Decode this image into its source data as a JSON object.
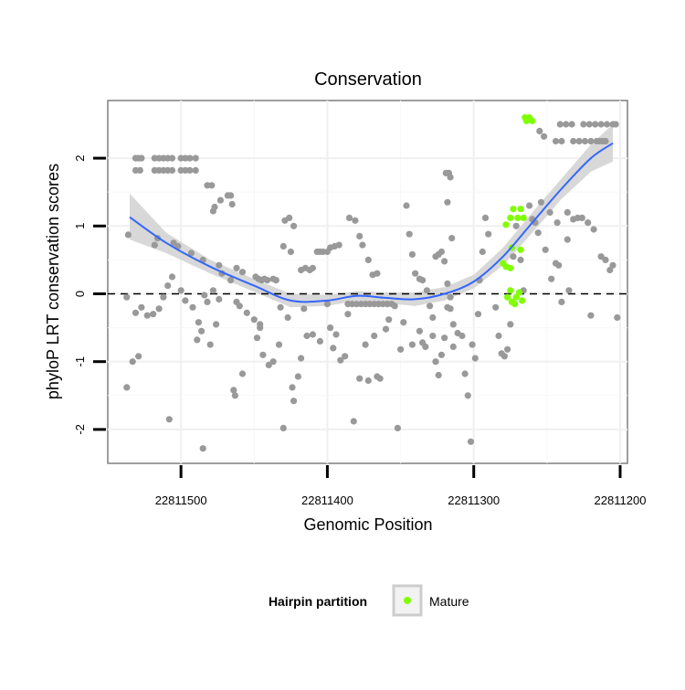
{
  "chart_data": {
    "type": "scatter",
    "title": "Conservation",
    "xlabel": "Genomic Position",
    "ylabel": "phyloP LRT conservation scores",
    "x_reversed": true,
    "xlim": [
      22811550,
      22811195
    ],
    "ylim": [
      -2.5,
      2.85
    ],
    "x_ticks": [
      22811500,
      22811400,
      22811300,
      22811200
    ],
    "y_ticks": [
      -2,
      -1,
      0,
      1,
      2
    ],
    "reference_line_y": 0,
    "grid": true,
    "legend_position": "bottom",
    "legend_title": "Hairpin partition",
    "legend_entries": [
      "Mature"
    ],
    "colors": {
      "other": "#999999",
      "mature": "#7fff00",
      "smooth": "#3366ff",
      "band": "#d4d4d4"
    },
    "series": [
      {
        "name": "",
        "color": "#999999",
        "points": [
          [
            22811531,
            2.0
          ],
          [
            22811529,
            2.0
          ],
          [
            22811527,
            2.0
          ],
          [
            22811518,
            2.0
          ],
          [
            22811515,
            2.0
          ],
          [
            22811512,
            2.0
          ],
          [
            22811509,
            2.0
          ],
          [
            22811506,
            2.0
          ],
          [
            22811500,
            2.0
          ],
          [
            22811497,
            2.0
          ],
          [
            22811494,
            2.0
          ],
          [
            22811490,
            2.0
          ],
          [
            22811531,
            1.82
          ],
          [
            22811528,
            1.82
          ],
          [
            22811518,
            1.82
          ],
          [
            22811515,
            1.82
          ],
          [
            22811512,
            1.82
          ],
          [
            22811509,
            1.82
          ],
          [
            22811506,
            1.82
          ],
          [
            22811500,
            1.82
          ],
          [
            22811497,
            1.82
          ],
          [
            22811494,
            1.82
          ],
          [
            22811490,
            1.82
          ],
          [
            22811482,
            1.6
          ],
          [
            22811479,
            1.6
          ],
          [
            22811468,
            1.45
          ],
          [
            22811466,
            1.45
          ],
          [
            22811465,
            1.32
          ],
          [
            22811473,
            1.38
          ],
          [
            22811477,
            1.28
          ],
          [
            22811478,
            1.22
          ],
          [
            22811536,
            0.87
          ],
          [
            22811516,
            0.82
          ],
          [
            22811505,
            0.75
          ],
          [
            22811502,
            0.7
          ],
          [
            22811518,
            0.72
          ],
          [
            22811493,
            0.6
          ],
          [
            22811485,
            0.5
          ],
          [
            22811474,
            0.42
          ],
          [
            22811472,
            0.3
          ],
          [
            22811462,
            0.38
          ],
          [
            22811458,
            0.32
          ],
          [
            22811478,
            0.05
          ],
          [
            22811474,
            -0.08
          ],
          [
            22811466,
            0.2
          ],
          [
            22811462,
            -0.12
          ],
          [
            22811460,
            -0.18
          ],
          [
            22811455,
            -0.28
          ],
          [
            22811450,
            -0.38
          ],
          [
            22811446,
            -0.45
          ],
          [
            22811537,
            -0.05
          ],
          [
            22811531,
            -0.28
          ],
          [
            22811527,
            -0.2
          ],
          [
            22811523,
            -0.32
          ],
          [
            22811519,
            -0.3
          ],
          [
            22811515,
            -0.22
          ],
          [
            22811512,
            -0.05
          ],
          [
            22811509,
            0.12
          ],
          [
            22811506,
            0.25
          ],
          [
            22811500,
            0.05
          ],
          [
            22811497,
            -0.1
          ],
          [
            22811492,
            -0.2
          ],
          [
            22811488,
            -0.42
          ],
          [
            22811486,
            -0.55
          ],
          [
            22811484,
            -0.02
          ],
          [
            22811482,
            -0.12
          ],
          [
            22811533,
            -1.0
          ],
          [
            22811529,
            -0.92
          ],
          [
            22811537,
            -1.38
          ],
          [
            22811508,
            -1.85
          ],
          [
            22811480,
            -0.75
          ],
          [
            22811476,
            -0.45
          ],
          [
            22811489,
            -0.68
          ],
          [
            22811464,
            -1.42
          ],
          [
            22811463,
            -1.5
          ],
          [
            22811458,
            -1.18
          ],
          [
            22811485,
            -2.28
          ],
          [
            22811449,
            0.25
          ],
          [
            22811447,
            0.22
          ],
          [
            22811445,
            0.2
          ],
          [
            22811443,
            0.22
          ],
          [
            22811441,
            0.2
          ],
          [
            22811437,
            0.22
          ],
          [
            22811435,
            0.2
          ],
          [
            22811446,
            -0.5
          ],
          [
            22811448,
            -0.65
          ],
          [
            22811444,
            -0.9
          ],
          [
            22811440,
            -1.05
          ],
          [
            22811437,
            -1.0
          ],
          [
            22811429,
            1.08
          ],
          [
            22811426,
            1.12
          ],
          [
            22811423,
            1.0
          ],
          [
            22811425,
            0.62
          ],
          [
            22811430,
            0.7
          ],
          [
            22811432,
            -0.2
          ],
          [
            22811427,
            -0.35
          ],
          [
            22811433,
            -0.75
          ],
          [
            22811430,
            -1.98
          ],
          [
            22811423,
            -1.58
          ],
          [
            22811424,
            -1.38
          ],
          [
            22811420,
            -1.22
          ],
          [
            22811418,
            -0.95
          ],
          [
            22811416,
            -0.22
          ],
          [
            22811414,
            -0.62
          ],
          [
            22811418,
            0.35
          ],
          [
            22811415,
            0.38
          ],
          [
            22811412,
            0.35
          ],
          [
            22811410,
            0.38
          ],
          [
            22811407,
            0.62
          ],
          [
            22811405,
            0.62
          ],
          [
            22811403,
            0.62
          ],
          [
            22811400,
            0.62
          ],
          [
            22811398,
            0.68
          ],
          [
            22811395,
            0.7
          ],
          [
            22811392,
            0.72
          ],
          [
            22811410,
            -0.6
          ],
          [
            22811405,
            -0.7
          ],
          [
            22811400,
            -0.15
          ],
          [
            22811398,
            -0.5
          ],
          [
            22811396,
            -0.8
          ],
          [
            22811394,
            -0.6
          ],
          [
            22811391,
            -0.98
          ],
          [
            22811388,
            -0.92
          ],
          [
            22811386,
            -0.3
          ],
          [
            22811385,
            1.12
          ],
          [
            22811381,
            1.08
          ],
          [
            22811378,
            0.85
          ],
          [
            22811376,
            0.72
          ],
          [
            22811372,
            0.5
          ],
          [
            22811369,
            0.28
          ],
          [
            22811366,
            0.3
          ],
          [
            22811386,
            -0.15
          ],
          [
            22811383,
            -0.15
          ],
          [
            22811380,
            -0.15
          ],
          [
            22811377,
            -0.15
          ],
          [
            22811374,
            -0.15
          ],
          [
            22811371,
            -0.15
          ],
          [
            22811368,
            -0.15
          ],
          [
            22811365,
            -0.15
          ],
          [
            22811362,
            -0.15
          ],
          [
            22811359,
            -0.15
          ],
          [
            22811356,
            -0.15
          ],
          [
            22811382,
            -1.88
          ],
          [
            22811378,
            -1.25
          ],
          [
            22811374,
            -0.75
          ],
          [
            22811372,
            -1.28
          ],
          [
            22811368,
            -0.62
          ],
          [
            22811366,
            -1.22
          ],
          [
            22811364,
            -1.25
          ],
          [
            22811360,
            -0.52
          ],
          [
            22811358,
            -0.38
          ],
          [
            22811354,
            -0.18
          ],
          [
            22811352,
            -1.98
          ],
          [
            22811350,
            -0.82
          ],
          [
            22811348,
            -0.42
          ],
          [
            22811346,
            1.3
          ],
          [
            22811344,
            0.88
          ],
          [
            22811342,
            0.58
          ],
          [
            22811340,
            0.3
          ],
          [
            22811337,
            0.22
          ],
          [
            22811335,
            0.2
          ],
          [
            22811332,
            0.05
          ],
          [
            22811330,
            -0.18
          ],
          [
            22811328,
            -0.35
          ],
          [
            22811326,
            0.55
          ],
          [
            22811324,
            0.58
          ],
          [
            22811322,
            0.62
          ],
          [
            22811320,
            0.48
          ],
          [
            22811318,
            0.15
          ],
          [
            22811316,
            -0.22
          ],
          [
            22811314,
            -0.45
          ],
          [
            22811337,
            -0.55
          ],
          [
            22811335,
            -0.72
          ],
          [
            22811333,
            -0.78
          ],
          [
            22811328,
            -0.62
          ],
          [
            22811326,
            -1.0
          ],
          [
            22811324,
            -1.2
          ],
          [
            22811322,
            -0.9
          ],
          [
            22811320,
            -0.65
          ],
          [
            22811318,
            -0.2
          ],
          [
            22811316,
            -0.05
          ],
          [
            22811314,
            -0.78
          ],
          [
            22811342,
            -0.75
          ],
          [
            22811319,
            1.78
          ],
          [
            22811317,
            1.78
          ],
          [
            22811316,
            1.72
          ],
          [
            22811318,
            1.35
          ],
          [
            22811315,
            0.82
          ],
          [
            22811311,
            -0.58
          ],
          [
            22811308,
            -0.62
          ],
          [
            22811306,
            -1.18
          ],
          [
            22811304,
            -1.5
          ],
          [
            22811302,
            -2.18
          ],
          [
            22811301,
            -0.75
          ],
          [
            22811299,
            -0.95
          ],
          [
            22811297,
            -0.3
          ],
          [
            22811296,
            0.2
          ],
          [
            22811294,
            0.62
          ],
          [
            22811292,
            1.12
          ],
          [
            22811290,
            0.88
          ],
          [
            22811285,
            -0.2
          ],
          [
            22811283,
            -0.62
          ],
          [
            22811281,
            -0.88
          ],
          [
            22811279,
            -0.92
          ],
          [
            22811277,
            -0.82
          ],
          [
            22811275,
            -0.45
          ],
          [
            22811273,
            0.55
          ],
          [
            22811271,
            1.0
          ],
          [
            22811268,
            0.5
          ],
          [
            22811266,
            0.05
          ],
          [
            22811262,
            1.3
          ],
          [
            22811260,
            1.1
          ],
          [
            22811258,
            1.05
          ],
          [
            22811256,
            0.9
          ],
          [
            22811254,
            1.35
          ],
          [
            22811251,
            0.65
          ],
          [
            22811247,
            0.22
          ],
          [
            22811244,
            0.45
          ],
          [
            22811241,
            2.5
          ],
          [
            22811237,
            2.5
          ],
          [
            22811233,
            2.5
          ],
          [
            22811225,
            2.5
          ],
          [
            22811221,
            2.5
          ],
          [
            22811217,
            2.5
          ],
          [
            22811213,
            2.5
          ],
          [
            22811209,
            2.5
          ],
          [
            22811205,
            2.5
          ],
          [
            22811203,
            2.5
          ],
          [
            22811255,
            2.4
          ],
          [
            22811252,
            2.32
          ],
          [
            22811244,
            2.25
          ],
          [
            22811240,
            2.25
          ],
          [
            22811232,
            2.25
          ],
          [
            22811228,
            2.25
          ],
          [
            22811224,
            2.25
          ],
          [
            22811220,
            2.25
          ],
          [
            22811216,
            2.25
          ],
          [
            22811214,
            2.25
          ],
          [
            22811212,
            2.25
          ],
          [
            22811210,
            2.25
          ],
          [
            22811248,
            1.2
          ],
          [
            22811243,
            1.05
          ],
          [
            22811236,
            1.2
          ],
          [
            22811232,
            1.1
          ],
          [
            22811229,
            1.12
          ],
          [
            22811226,
            1.12
          ],
          [
            22811222,
            1.05
          ],
          [
            22811218,
            0.95
          ],
          [
            22811236,
            0.8
          ],
          [
            22811213,
            0.55
          ],
          [
            22811210,
            0.5
          ],
          [
            22811207,
            0.35
          ],
          [
            22811205,
            0.42
          ],
          [
            22811202,
            -0.35
          ],
          [
            22811220,
            -0.32
          ],
          [
            22811240,
            -0.12
          ],
          [
            22811235,
            0.05
          ],
          [
            22811242,
            0.42
          ]
        ]
      },
      {
        "name": "Mature",
        "color": "#7fff00",
        "points": [
          [
            22811265,
            2.6
          ],
          [
            22811262,
            2.6
          ],
          [
            22811264,
            2.55
          ],
          [
            22811260,
            2.55
          ],
          [
            22811278,
            1.02
          ],
          [
            22811275,
            1.12
          ],
          [
            22811273,
            1.25
          ],
          [
            22811270,
            1.12
          ],
          [
            22811268,
            1.25
          ],
          [
            22811266,
            1.12
          ],
          [
            22811274,
            0.68
          ],
          [
            22811268,
            0.65
          ],
          [
            22811280,
            0.45
          ],
          [
            22811278,
            0.4
          ],
          [
            22811275,
            0.38
          ],
          [
            22811275,
            0.05
          ],
          [
            22811277,
            -0.05
          ],
          [
            22811274,
            -0.12
          ],
          [
            22811271,
            -0.05
          ],
          [
            22811269,
            0.02
          ],
          [
            22811272,
            -0.15
          ],
          [
            22811267,
            -0.1
          ]
        ]
      }
    ],
    "smooth": {
      "x": [
        22811535,
        22811510,
        22811480,
        22811450,
        22811425,
        22811400,
        22811380,
        22811360,
        22811340,
        22811320,
        22811300,
        22811280,
        22811260,
        22811240,
        22811220,
        22811205
      ],
      "y": [
        1.13,
        0.75,
        0.4,
        0.12,
        -0.1,
        -0.1,
        -0.03,
        -0.06,
        -0.08,
        0.0,
        0.18,
        0.55,
        1.05,
        1.55,
        2.0,
        2.22
      ],
      "lower": [
        0.8,
        0.6,
        0.3,
        0.03,
        -0.2,
        -0.18,
        -0.1,
        -0.14,
        -0.18,
        -0.1,
        0.08,
        0.42,
        0.9,
        1.4,
        1.8,
        1.95
      ],
      "upper": [
        1.48,
        0.9,
        0.5,
        0.22,
        0.0,
        -0.02,
        0.04,
        0.02,
        0.02,
        0.1,
        0.28,
        0.68,
        1.2,
        1.7,
        2.2,
        2.5
      ]
    }
  }
}
